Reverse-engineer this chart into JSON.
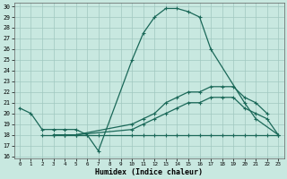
{
  "xlabel": "Humidex (Indice chaleur)",
  "xlim": [
    -0.5,
    23.5
  ],
  "ylim": [
    15.8,
    30.3
  ],
  "yticks": [
    16,
    17,
    18,
    19,
    20,
    21,
    22,
    23,
    24,
    25,
    26,
    27,
    28,
    29,
    30
  ],
  "xticks": [
    0,
    1,
    2,
    3,
    4,
    5,
    6,
    7,
    8,
    9,
    10,
    11,
    12,
    13,
    14,
    15,
    16,
    17,
    18,
    19,
    20,
    21,
    22,
    23
  ],
  "bg_color": "#c8e8e0",
  "grid_color": "#a0c8c0",
  "line_color": "#1a6858",
  "curves": [
    {
      "x": [
        0,
        1,
        2,
        3,
        4,
        5,
        6,
        7,
        10,
        11,
        12,
        13,
        14,
        15,
        16,
        17,
        20,
        21,
        23
      ],
      "y": [
        20.5,
        20.0,
        18.5,
        18.5,
        18.5,
        18.5,
        18.0,
        16.5,
        25.0,
        27.5,
        29.0,
        29.8,
        29.8,
        29.5,
        29.0,
        26.0,
        21.0,
        19.5,
        18.0
      ]
    },
    {
      "x": [
        2,
        3,
        4,
        5,
        6,
        7,
        10,
        11,
        12,
        13,
        14,
        15,
        16,
        17,
        18,
        19,
        20,
        21,
        22,
        23
      ],
      "y": [
        18.0,
        18.0,
        18.0,
        18.0,
        18.0,
        18.0,
        18.0,
        18.0,
        18.0,
        18.0,
        18.0,
        18.0,
        18.0,
        18.0,
        18.0,
        18.0,
        18.0,
        18.0,
        18.0,
        18.0
      ]
    },
    {
      "x": [
        3,
        4,
        5,
        10,
        11,
        12,
        13,
        14,
        15,
        16,
        17,
        18,
        19,
        20,
        21,
        22,
        23
      ],
      "y": [
        18.0,
        18.0,
        18.0,
        19.0,
        19.5,
        20.0,
        21.0,
        21.5,
        22.0,
        22.0,
        22.5,
        22.5,
        22.5,
        21.5,
        21.0,
        20.0,
        null
      ]
    },
    {
      "x": [
        3,
        4,
        5,
        10,
        11,
        12,
        13,
        14,
        15,
        16,
        17,
        18,
        19,
        20,
        21,
        22,
        23
      ],
      "y": [
        18.0,
        18.0,
        18.0,
        18.5,
        19.0,
        19.5,
        20.0,
        20.5,
        21.0,
        21.0,
        21.5,
        21.5,
        21.5,
        20.5,
        20.0,
        19.5,
        18.0
      ]
    }
  ]
}
